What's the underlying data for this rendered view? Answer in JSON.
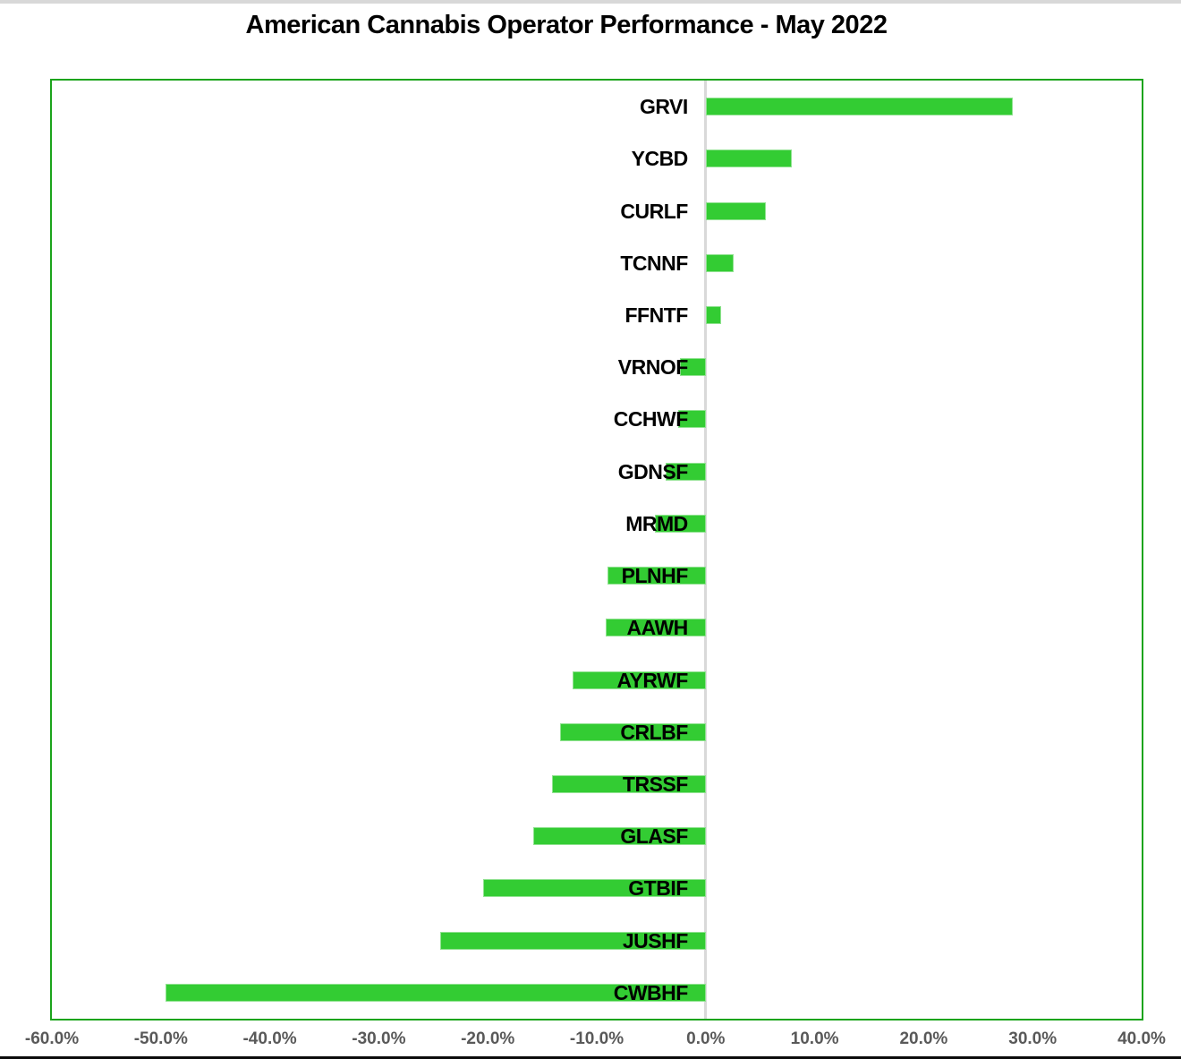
{
  "title": "American Cannabis Operator Performance - May 2022",
  "chart_data": {
    "type": "bar",
    "orientation": "horizontal",
    "title": "American Cannabis Operator Performance - May 2022",
    "categories": [
      "GRVI",
      "YCBD",
      "CURLF",
      "TCNNF",
      "FFNTF",
      "VRNOF",
      "CCHWF",
      "GDNSF",
      "MRMD",
      "PLNHF",
      "AAWH",
      "AYRWF",
      "CRLBF",
      "TRSSF",
      "GLASF",
      "GTBIF",
      "JUSHF",
      "CWBHF"
    ],
    "values": [
      28.2,
      7.9,
      5.5,
      2.6,
      1.4,
      -2.4,
      -2.5,
      -3.7,
      -4.7,
      -9.0,
      -9.2,
      -12.2,
      -13.4,
      -14.1,
      -15.8,
      -20.4,
      -24.4,
      -49.6
    ],
    "value_unit": "%",
    "xlabel": "",
    "ylabel": "",
    "xlim": [
      -60,
      40
    ],
    "x_ticks": [
      -60,
      -50,
      -40,
      -30,
      -20,
      -10,
      0,
      10,
      20,
      30,
      40
    ],
    "x_tick_labels": [
      "-60.0%",
      "-50.0%",
      "-40.0%",
      "-30.0%",
      "-20.0%",
      "-10.0%",
      "0.0%",
      "10.0%",
      "20.0%",
      "30.0%",
      "40.0%"
    ],
    "grid": "zero-line-only",
    "legend": "none",
    "colors": {
      "bar_fill": "#33cc33",
      "bar_edge": "#90e290",
      "plot_border": "#1ca41c",
      "zero_line": "#d9d9d9",
      "axis_label_color": "#595959",
      "category_label_color": "#000000",
      "title_color": "#000000"
    }
  }
}
